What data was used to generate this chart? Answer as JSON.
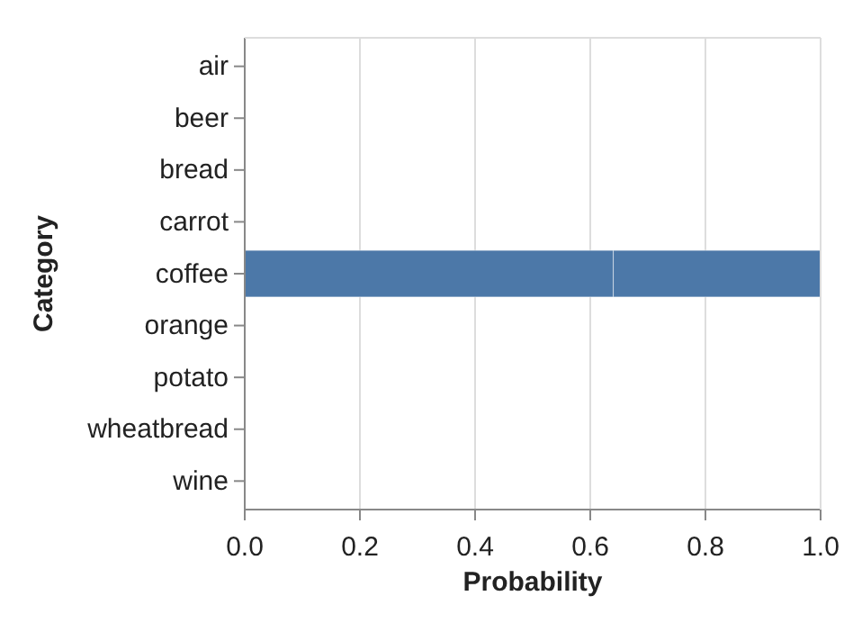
{
  "chart_data": {
    "type": "bar",
    "orientation": "horizontal",
    "stacked": true,
    "categories": [
      "air",
      "beer",
      "bread",
      "carrot",
      "coffee",
      "orange",
      "potato",
      "wheatbread",
      "wine"
    ],
    "series": [
      {
        "color": "#4c78a8",
        "values": [
          0,
          0,
          0,
          0,
          0.64,
          0,
          0,
          0,
          0
        ]
      },
      {
        "color": "#4c78a8",
        "values": [
          0,
          0,
          0,
          0,
          0.36,
          0,
          0,
          0,
          0
        ]
      }
    ],
    "xlabel": "Probability",
    "ylabel": "Category",
    "xlim": [
      0,
      1
    ],
    "xticks": [
      {
        "value": 0,
        "label": "0.0"
      },
      {
        "value": 0.2,
        "label": "0.2"
      },
      {
        "value": 0.4,
        "label": "0.4"
      },
      {
        "value": 0.6,
        "label": "0.6"
      },
      {
        "value": 0.8,
        "label": "0.8"
      },
      {
        "value": 1,
        "label": "1.0"
      }
    ],
    "grid": "x"
  }
}
